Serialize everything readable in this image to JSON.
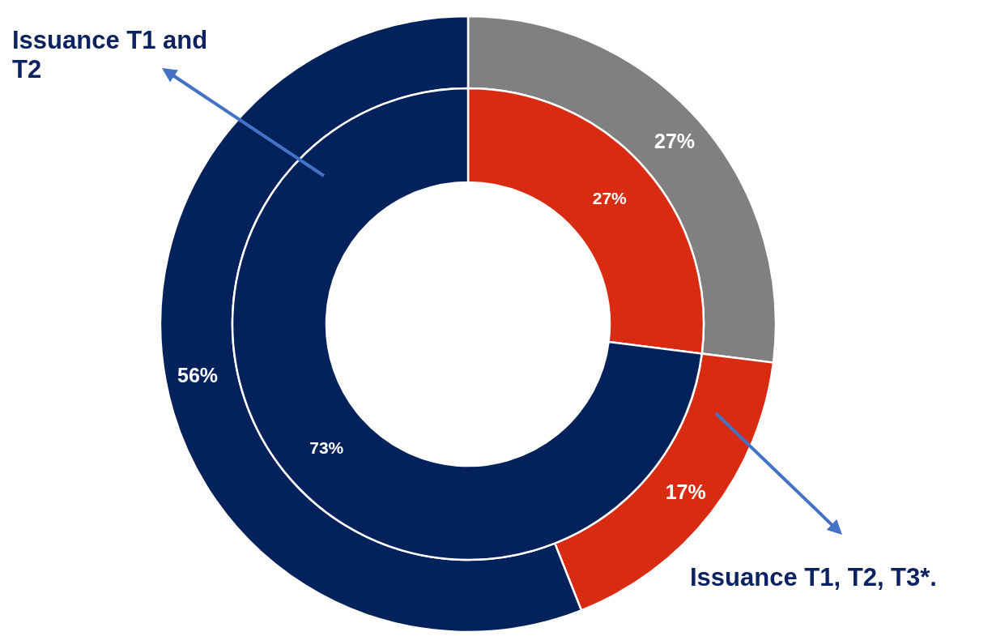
{
  "chart_data": {
    "type": "donut",
    "data_labels": true,
    "series": [
      {
        "values": [
          27,
          17,
          56
        ],
        "colors": [
          "#808080",
          "#d92b12",
          "#03215b"
        ],
        "value_labels": [
          "27%",
          "17%",
          "56%"
        ]
      },
      {
        "values": [
          27,
          73
        ],
        "colors": [
          "#d92b12",
          "#03215b"
        ],
        "value_labels": [
          "27%",
          "73%"
        ]
      }
    ],
    "annotations": [
      "Issuance T1 and T2",
      "Issuance T1, T2, T3*."
    ]
  }
}
